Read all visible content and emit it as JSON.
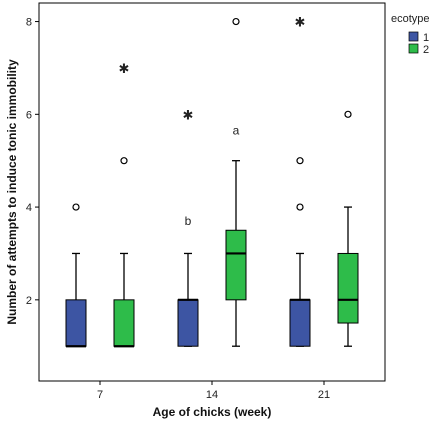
{
  "chart_data": {
    "type": "boxplot",
    "xlabel": "Age of chicks (week)",
    "ylabel": "Number of attempts to induce tonic immobility",
    "categories": [
      "7",
      "14",
      "21"
    ],
    "yticks": [
      2,
      4,
      6,
      8
    ],
    "ylim": [
      0.25,
      8.4
    ],
    "grid": false,
    "legend": {
      "title": "ecotype",
      "position": "top-right",
      "entries": [
        {
          "label": "1",
          "color": "#3d55a3"
        },
        {
          "label": "2",
          "color": "#2ebc4a"
        }
      ]
    },
    "series": [
      {
        "name": "1",
        "color": "#3d55a3",
        "boxes": [
          {
            "category": "7",
            "whisker_low": 1,
            "q1": 1,
            "median": 1,
            "q3": 2,
            "whisker_high": 3,
            "outliers": [
              4
            ],
            "extremes": []
          },
          {
            "category": "14",
            "whisker_low": 1,
            "q1": 1,
            "median": 2,
            "q3": 2,
            "whisker_high": 3,
            "outliers": [],
            "extremes": [
              6
            ]
          },
          {
            "category": "21",
            "whisker_low": 1,
            "q1": 1,
            "median": 2,
            "q3": 2,
            "whisker_high": 3,
            "outliers": [
              4,
              5
            ],
            "extremes": [
              8
            ]
          }
        ]
      },
      {
        "name": "2",
        "color": "#2ebc4a",
        "boxes": [
          {
            "category": "7",
            "whisker_low": 1,
            "q1": 1,
            "median": 1,
            "q3": 2,
            "whisker_high": 3,
            "outliers": [
              5
            ],
            "extremes": [
              7
            ]
          },
          {
            "category": "14",
            "whisker_low": 1,
            "q1": 2,
            "median": 3,
            "q3": 3.5,
            "whisker_high": 5,
            "outliers": [
              8
            ],
            "extremes": []
          },
          {
            "category": "21",
            "whisker_low": 1,
            "q1": 1.5,
            "median": 2,
            "q3": 3,
            "whisker_high": 4,
            "outliers": [
              6
            ],
            "extremes": []
          }
        ]
      }
    ],
    "annotations": [
      {
        "text": "b",
        "category": "14",
        "series": "1",
        "y": 3.7
      },
      {
        "text": "a",
        "category": "14",
        "series": "2",
        "y": 5.65
      }
    ]
  }
}
